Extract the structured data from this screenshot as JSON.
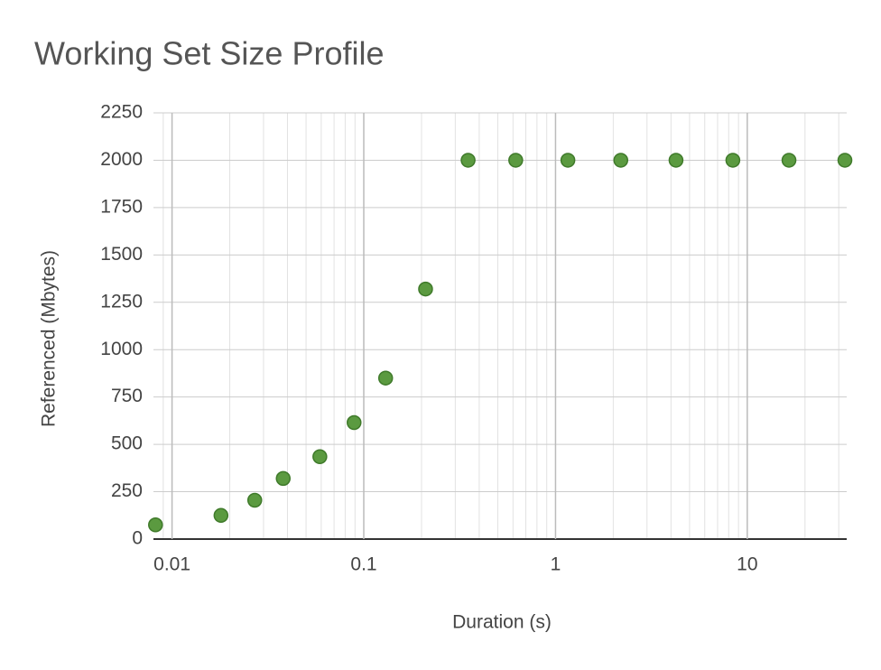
{
  "chart_data": {
    "type": "scatter",
    "title": "Working Set Size Profile",
    "x_label": "Duration (s)",
    "y_label": "Referenced (Mbytes)",
    "x": [
      0.0082,
      0.018,
      0.027,
      0.038,
      0.059,
      0.089,
      0.13,
      0.21,
      0.35,
      0.62,
      1.16,
      2.19,
      4.25,
      8.41,
      16.5,
      32.3
    ],
    "series": [
      {
        "name": "Referenced",
        "color": "#5b9a40",
        "values": [
          75,
          125,
          205,
          320,
          435,
          615,
          850,
          1320,
          2000,
          2000,
          2000,
          2000,
          2000,
          2000,
          2000,
          2000
        ]
      }
    ],
    "xlim": [
      0.008,
      33
    ],
    "xticks": [
      0.01,
      0.1,
      1,
      10
    ],
    "xscale": "log",
    "ylim": [
      0,
      2250
    ],
    "yticks": [
      0,
      250,
      500,
      750,
      1000,
      1250,
      1500,
      1750,
      2000,
      2250
    ],
    "grid": true,
    "legend": false
  }
}
